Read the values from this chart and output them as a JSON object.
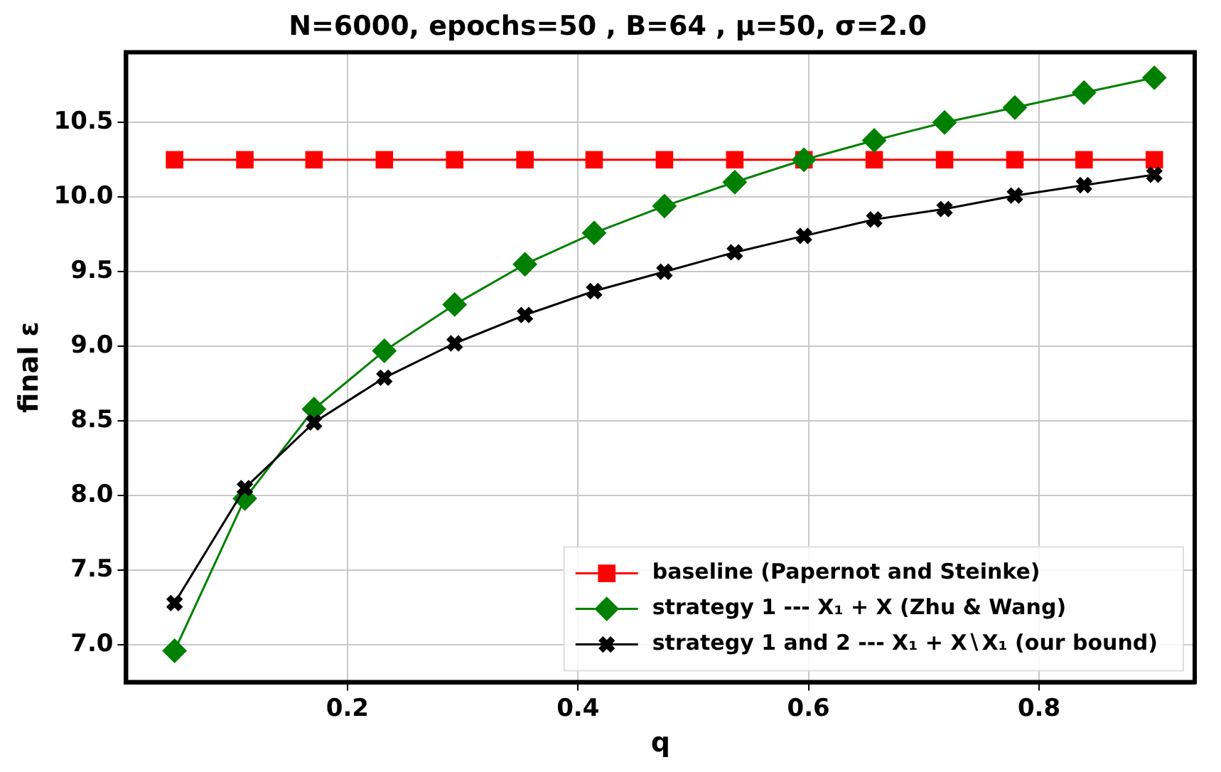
{
  "chart_data": {
    "type": "line",
    "title": "N=6000, epochs=50 , B=64 , μ=50, σ=2.0",
    "xlabel": "q",
    "ylabel": "final ε",
    "x": [
      0.05,
      0.111,
      0.171,
      0.232,
      0.293,
      0.354,
      0.414,
      0.475,
      0.536,
      0.596,
      0.657,
      0.718,
      0.779,
      0.839,
      0.9
    ],
    "series": [
      {
        "name": "baseline (Papernot and Steinke)",
        "color": "#ff0000",
        "marker": "square",
        "values": [
          10.25,
          10.25,
          10.25,
          10.25,
          10.25,
          10.25,
          10.25,
          10.25,
          10.25,
          10.25,
          10.25,
          10.25,
          10.25,
          10.25,
          10.25
        ]
      },
      {
        "name": "strategy 1 --- X₁ + X (Zhu & Wang)",
        "color": "#008000",
        "marker": "diamond",
        "values": [
          6.96,
          7.98,
          8.58,
          8.97,
          9.28,
          9.55,
          9.76,
          9.94,
          10.1,
          10.25,
          10.38,
          10.5,
          10.6,
          10.7,
          10.8
        ]
      },
      {
        "name": "strategy 1 and 2 --- X₁ + X∖X₁ (our bound)",
        "color": "#000000",
        "marker": "cross",
        "values": [
          7.28,
          8.05,
          8.49,
          8.79,
          9.02,
          9.21,
          9.37,
          9.5,
          9.63,
          9.74,
          9.85,
          9.92,
          10.01,
          10.08,
          10.15
        ]
      }
    ],
    "xlim": [
      0.008,
      0.935
    ],
    "ylim": [
      6.75,
      10.97
    ],
    "xticks": [
      0.2,
      0.4,
      0.6,
      0.8
    ],
    "yticks": [
      {
        "value": 7,
        "label": "7.0"
      },
      {
        "value": 7.5,
        "label": "7.5"
      },
      {
        "value": 8,
        "label": "8.0"
      },
      {
        "value": 8.5,
        "label": "8.5"
      },
      {
        "value": 9,
        "label": "9.0"
      },
      {
        "value": 9.5,
        "label": "9.5"
      },
      {
        "value": 10,
        "label": "10.0"
      },
      {
        "value": 10.5,
        "label": "10.5"
      }
    ],
    "grid": true,
    "legend": "bottom right",
    "line_style": "solid"
  }
}
